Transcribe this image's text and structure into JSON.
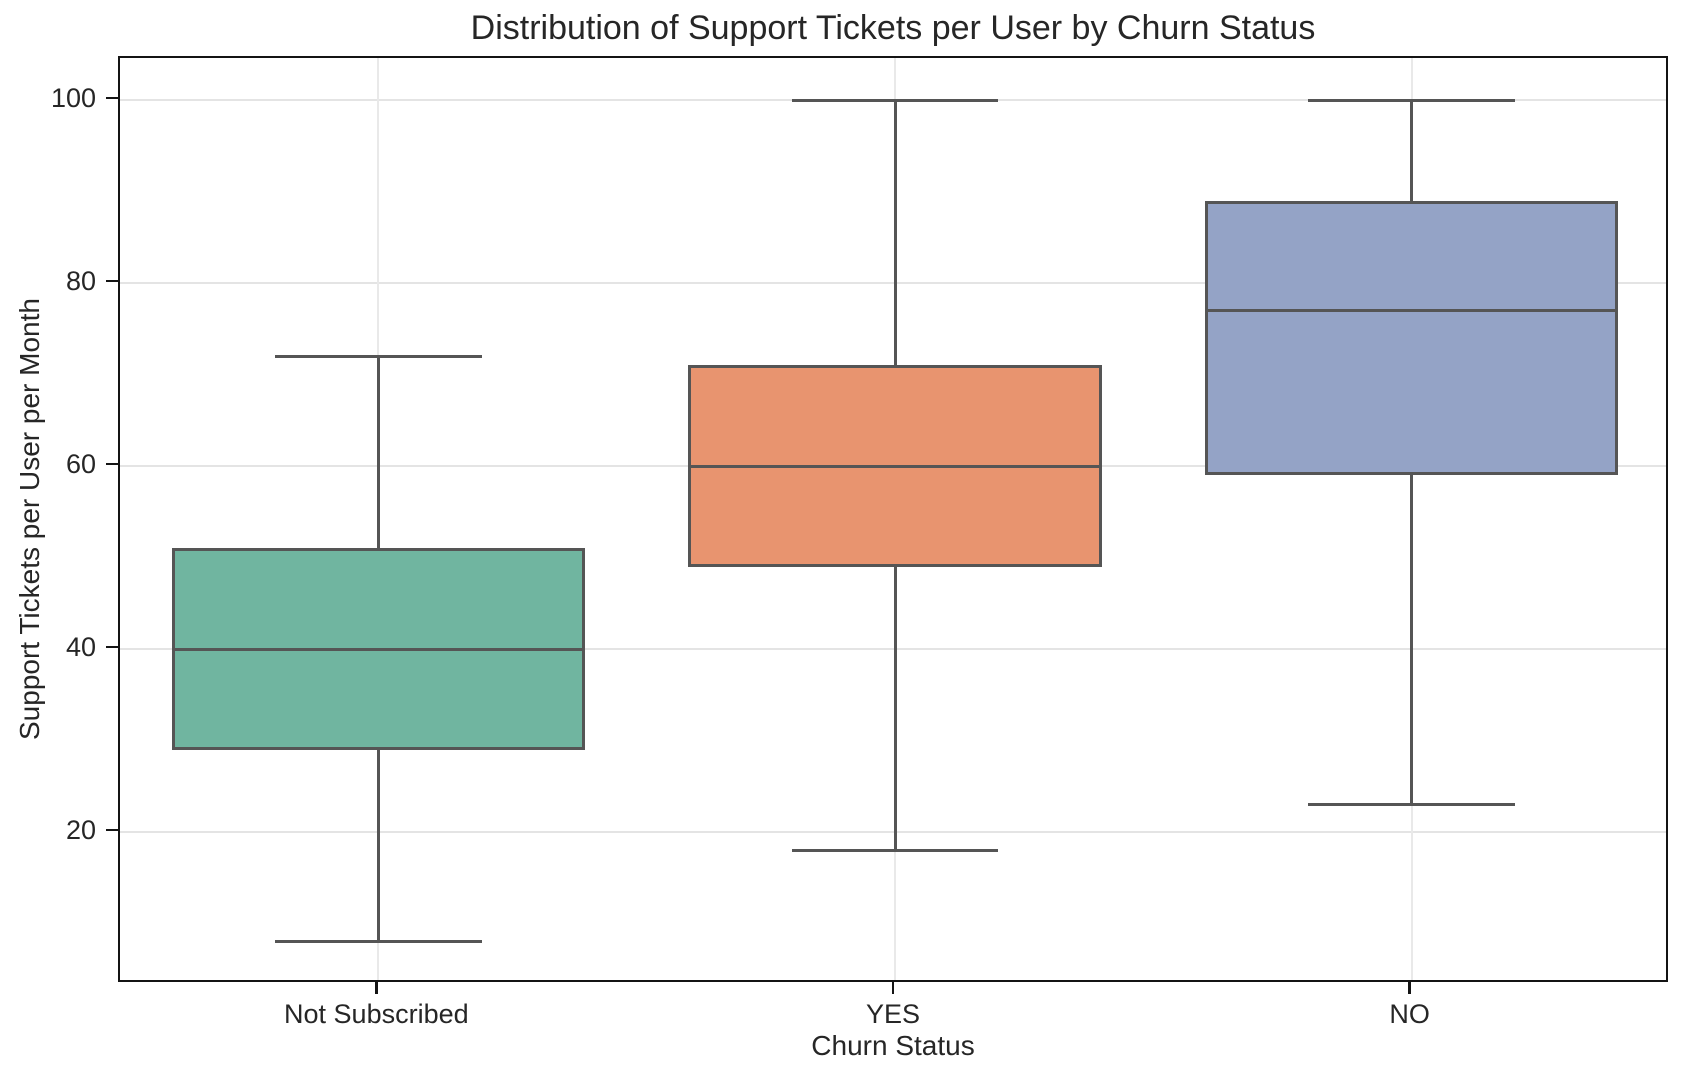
{
  "figure": {
    "title": "Distribution of Support Tickets per User by Churn Status"
  },
  "chart_data": {
    "type": "boxplot",
    "title": "Distribution of Support Tickets per User by Churn Status",
    "xlabel": "Churn Status",
    "ylabel": "Support Tickets per User per Month",
    "categories": [
      "Not Subscribed",
      "YES",
      "NO"
    ],
    "yticks": [
      20,
      40,
      60,
      80,
      100
    ],
    "ylim": [
      3.4,
      104.6
    ],
    "grid": true,
    "legend": "none",
    "boxes": [
      {
        "category": "Not Subscribed",
        "whisker_low": 8,
        "q1": 29,
        "median": 40,
        "q3": 51,
        "whisker_high": 72,
        "fill": "#70B5A0"
      },
      {
        "category": "YES",
        "whisker_low": 18,
        "q1": 49,
        "median": 60,
        "q3": 71,
        "whisker_high": 100,
        "fill": "#E8946F"
      },
      {
        "category": "NO",
        "whisker_low": 23,
        "q1": 59,
        "median": 77,
        "q3": 89,
        "whisker_high": 100,
        "fill": "#94A3C6"
      }
    ],
    "colors": {
      "box_edge": "#555555",
      "grid": "#e4e4e4",
      "spine": "#141414",
      "text": "#262626",
      "background": "#ffffff"
    }
  }
}
